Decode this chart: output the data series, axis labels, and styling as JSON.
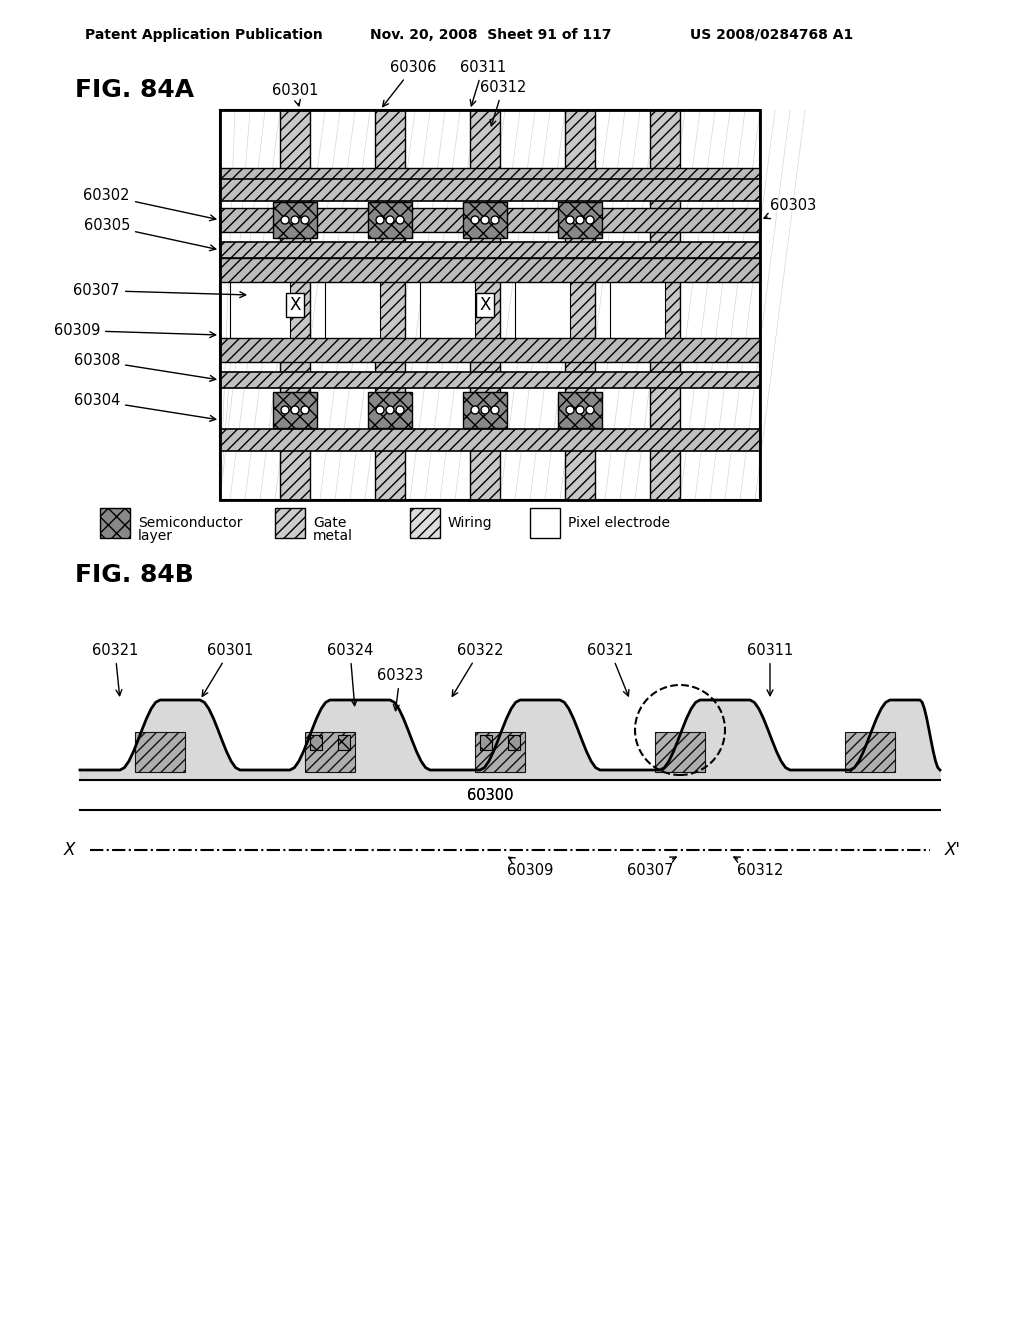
{
  "header_left": "Patent Application Publication",
  "header_mid": "Nov. 20, 2008  Sheet 91 of 117",
  "header_right": "US 2008/0284768 A1",
  "fig_84a_label": "FIG. 84A",
  "fig_84b_label": "FIG. 84B",
  "background": "#ffffff",
  "text_color": "#000000",
  "legend_items": [
    {
      "label": "Semiconductor\nlayer",
      "hatch": "x",
      "facecolor": "#aaaaaa"
    },
    {
      "label": "Gate\nmetal",
      "hatch": "///",
      "facecolor": "#cccccc"
    },
    {
      "label": "Wiring",
      "hatch": "///",
      "facecolor": "#dddddd"
    },
    {
      "label": "Pixel electrode",
      "hatch": "",
      "facecolor": "#ffffff"
    }
  ],
  "labels_84a": [
    "60301",
    "60306",
    "60311",
    "60312",
    "60302",
    "60305",
    "60303",
    "60307",
    "60309",
    "60308",
    "60304"
  ],
  "labels_84b": [
    "60321",
    "60301",
    "60324",
    "60323",
    "60322",
    "60321",
    "60311",
    "60300",
    "60309",
    "60307",
    "60312"
  ]
}
